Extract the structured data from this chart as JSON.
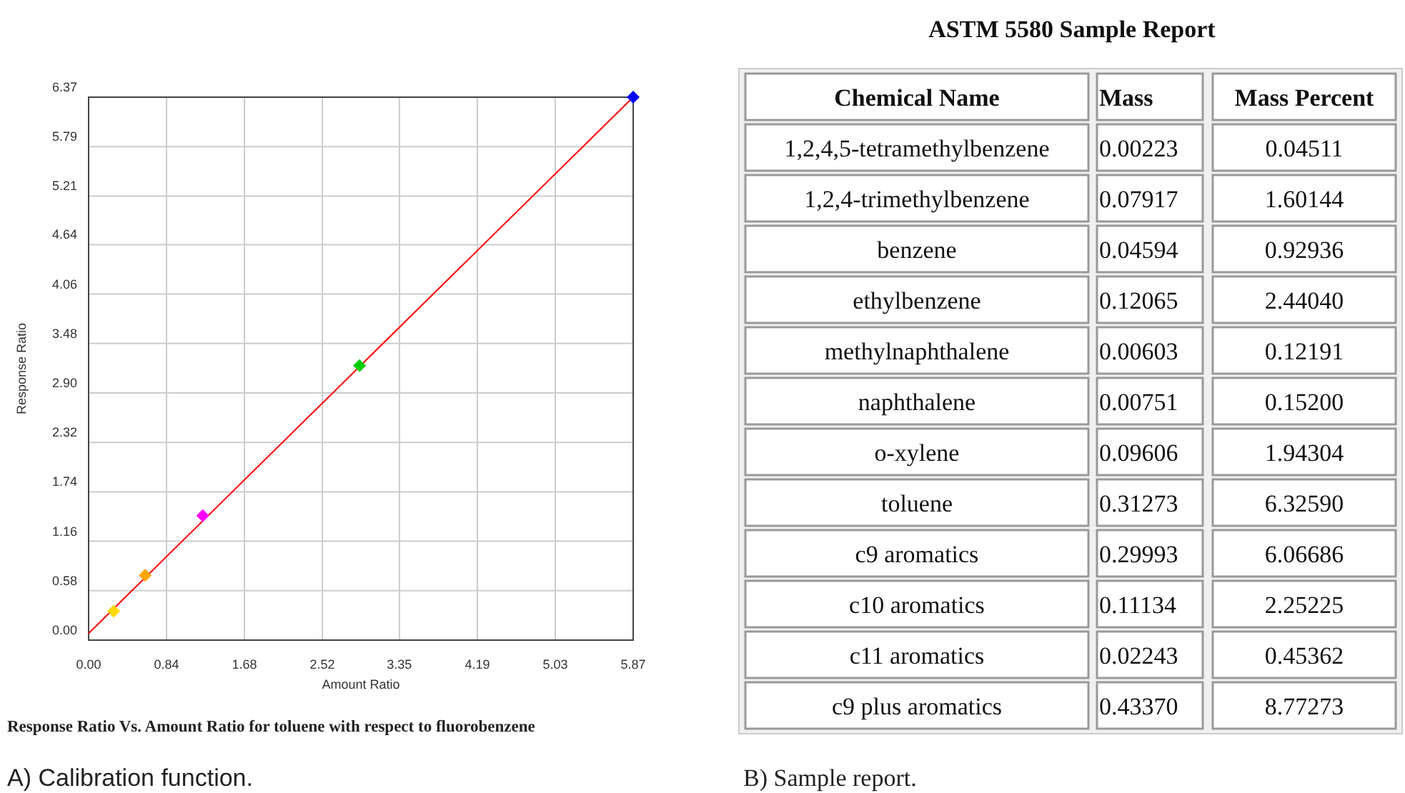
{
  "chart_data": [
    {
      "type": "scatter",
      "title": "Response Ratio Vs. Amount Ratio for toluene with respect to fluorobenzene",
      "xlabel": "Amount Ratio",
      "ylabel": "Response Ratio",
      "annotations": [
        "A) Calibration function."
      ],
      "xlim": [
        0,
        5.87
      ],
      "ylim": [
        0,
        6.37
      ],
      "xticks": [
        {
          "value": 0,
          "label": "0.00"
        },
        {
          "value": 0.84,
          "label": "0.84"
        },
        {
          "value": 1.68,
          "label": "1.68"
        },
        {
          "value": 2.52,
          "label": "2.52"
        },
        {
          "value": 3.35,
          "label": "3.35"
        },
        {
          "value": 4.19,
          "label": "4.19"
        },
        {
          "value": 5.03,
          "label": "5.03"
        },
        {
          "value": 5.87,
          "label": "5.87"
        }
      ],
      "yticks": [
        {
          "value": 0,
          "label": "0.00"
        },
        {
          "value": 0.58,
          "label": "0.58"
        },
        {
          "value": 1.16,
          "label": "1.16"
        },
        {
          "value": 1.74,
          "label": "1.74"
        },
        {
          "value": 2.32,
          "label": "2.32"
        },
        {
          "value": 2.9,
          "label": "2.90"
        },
        {
          "value": 3.48,
          "label": "3.48"
        },
        {
          "value": 4.06,
          "label": "4.06"
        },
        {
          "value": 4.64,
          "label": "4.64"
        },
        {
          "value": 5.21,
          "label": "5.21"
        },
        {
          "value": 5.79,
          "label": "5.79"
        },
        {
          "value": 6.37,
          "label": "6.37"
        }
      ],
      "grid": true,
      "series": [
        {
          "type": "line",
          "color": "#ff0000",
          "x": [
            0,
            5.87
          ],
          "values": [
            0.08,
            6.37
          ]
        },
        {
          "type": "scatter",
          "marker": "diamond",
          "x": [
            0.27,
            0.61,
            1.23,
            2.92,
            5.87
          ],
          "values": [
            0.34,
            0.76,
            1.46,
            3.22,
            6.37
          ],
          "colors": [
            "#ffd700",
            "#ffa500",
            "#ff00ff",
            "#00cc00",
            "#0000ff"
          ]
        }
      ]
    },
    {
      "type": "other",
      "title": "ASTM 5580 Sample Report",
      "xlabel": "Chemical Name",
      "annotations": [
        "B) Sample report."
      ],
      "categories": [
        "1,2,4,5-tetramethylbenzene",
        "1,2,4-trimethylbenzene",
        "benzene",
        "ethylbenzene",
        "methylnaphthalene",
        "naphthalene",
        "o-xylene",
        "toluene",
        "c9 aromatics",
        "c10 aromatics",
        "c11 aromatics",
        "c9 plus aromatics"
      ],
      "series": [
        {
          "name": "Mass",
          "values": [
            0.00223,
            0.07917,
            0.04594,
            0.12065,
            0.00603,
            0.00751,
            0.09606,
            0.31273,
            0.29993,
            0.11134,
            0.02243,
            0.4337
          ],
          "value_labels": [
            "0.00223",
            "0.07917",
            "0.04594",
            "0.12065",
            "0.00603",
            "0.00751",
            "0.09606",
            "0.31273",
            "0.29993",
            "0.11134",
            "0.02243",
            "0.43370"
          ]
        },
        {
          "name": "Mass Percent",
          "values": [
            0.04511,
            1.60144,
            0.92936,
            2.4404,
            0.12191,
            0.152,
            1.94304,
            6.3259,
            6.06686,
            2.25225,
            0.45362,
            8.77273
          ],
          "value_labels": [
            "0.04511",
            "1.60144",
            "0.92936",
            "2.44040",
            "0.12191",
            "0.15200",
            "1.94304",
            "6.32590",
            "6.06686",
            "2.25225",
            "0.45362",
            "8.77273"
          ]
        }
      ]
    }
  ]
}
